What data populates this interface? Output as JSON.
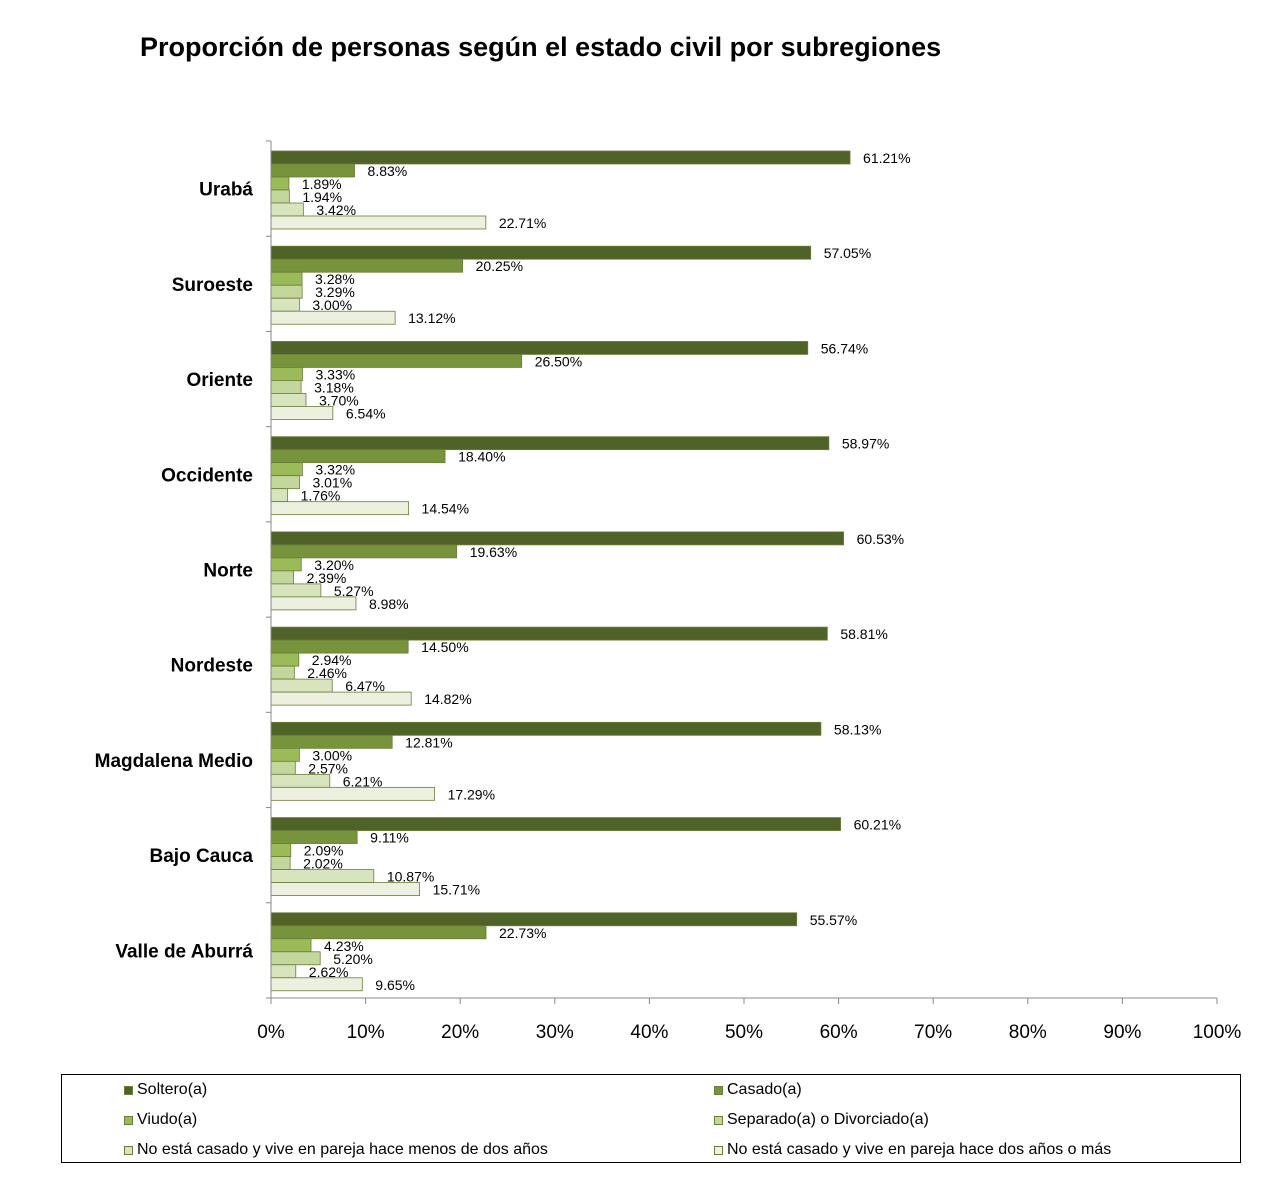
{
  "chart_data": {
    "type": "bar",
    "orientation": "horizontal",
    "title": "Proporción de personas según el estado civil por subregiones",
    "categories": [
      "Urabá",
      "Suroeste",
      "Oriente",
      "Occidente",
      "Norte",
      "Nordeste",
      "Magdalena Medio",
      "Bajo Cauca",
      "Valle de Aburrá"
    ],
    "xlim": [
      0,
      100
    ],
    "x_ticks": [
      "0%",
      "10%",
      "20%",
      "30%",
      "40%",
      "50%",
      "60%",
      "70%",
      "80%",
      "90%",
      "100%"
    ],
    "grid": false,
    "legend_position": "bottom",
    "series": [
      {
        "name": "Soltero(a)",
        "color": "#4f6228",
        "values": [
          61.21,
          57.05,
          56.74,
          58.97,
          60.53,
          58.81,
          58.13,
          60.21,
          55.57
        ],
        "labels": [
          "61.21%",
          "57.05%",
          "56.74%",
          "58.97%",
          "60.53%",
          "58.81%",
          "58.13%",
          "60.21%",
          "55.57%"
        ]
      },
      {
        "name": "Casado(a)",
        "color": "#77933c",
        "values": [
          8.83,
          20.25,
          26.5,
          18.4,
          19.63,
          14.5,
          12.81,
          9.11,
          22.73
        ],
        "labels": [
          "8.83%",
          "20.25%",
          "26.50%",
          "18.40%",
          "19.63%",
          "14.50%",
          "12.81%",
          "9.11%",
          "22.73%"
        ]
      },
      {
        "name": "Viudo(a)",
        "color": "#9bbb59",
        "values": [
          1.89,
          3.28,
          3.33,
          3.32,
          3.2,
          2.94,
          3.0,
          2.09,
          4.23
        ],
        "labels": [
          "1.89%",
          "3.28%",
          "3.33%",
          "3.32%",
          "3.20%",
          "2.94%",
          "3.00%",
          "2.09%",
          "4.23%"
        ]
      },
      {
        "name": "Separado(a) o Divorciado(a)",
        "color": "#c3d69b",
        "values": [
          1.94,
          3.29,
          3.18,
          3.01,
          2.39,
          2.46,
          2.57,
          2.02,
          5.2
        ],
        "labels": [
          "1.94%",
          "3.29%",
          "3.18%",
          "3.01%",
          "2.39%",
          "2.46%",
          "2.57%",
          "2.02%",
          "5.20%"
        ]
      },
      {
        "name": "No está casado y vive en pareja hace menos de dos años",
        "color": "#d7e4bd",
        "values": [
          3.42,
          3.0,
          3.7,
          1.76,
          5.27,
          6.47,
          6.21,
          10.87,
          2.62
        ],
        "labels": [
          "3.42%",
          "3.00%",
          "3.70%",
          "1.76%",
          "5.27%",
          "6.47%",
          "6.21%",
          "10.87%",
          "2.62%"
        ]
      },
      {
        "name": "No está casado y vive en pareja hace dos años o más",
        "color": "#ebf1de",
        "values": [
          22.71,
          13.12,
          6.54,
          14.54,
          8.98,
          14.82,
          17.29,
          15.71,
          9.65
        ],
        "labels": [
          "22.71%",
          "13.12%",
          "6.54%",
          "14.54%",
          "8.98%",
          "14.82%",
          "17.29%",
          "15.71%",
          "9.65%"
        ]
      }
    ]
  }
}
